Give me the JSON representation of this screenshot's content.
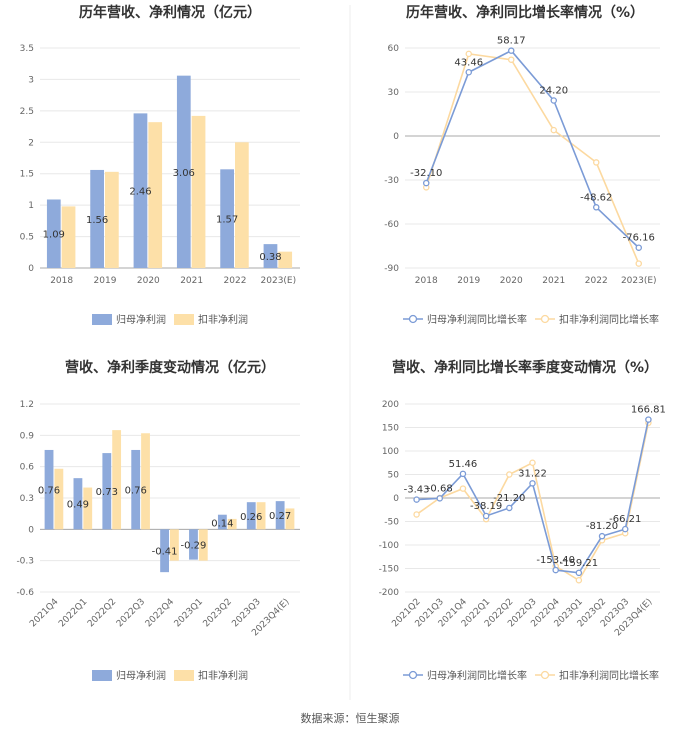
{
  "source": "数据来源：恒生聚源",
  "colors": {
    "series1": "#8eaadb",
    "series2": "#fde0a8",
    "grid": "#e8e8e8",
    "axis": "#aaaaaa"
  },
  "chart_data": [
    {
      "type": "bar",
      "title": "历年营收、净利情况（亿元）",
      "categories": [
        "2018",
        "2019",
        "2020",
        "2021",
        "2022",
        "2023(E)"
      ],
      "ylim": [
        0,
        3.5
      ],
      "yticks": [
        "0",
        "0.5",
        "1",
        "1.5",
        "2",
        "2.5",
        "3",
        "3.5"
      ],
      "series": [
        {
          "name": "归母净利润",
          "values": [
            1.09,
            1.56,
            2.46,
            3.06,
            1.57,
            0.38
          ],
          "labels": [
            "1.09",
            "1.56",
            "2.46",
            "3.06",
            "1.57",
            "0.38"
          ]
        },
        {
          "name": "扣非净利润",
          "values": [
            0.98,
            1.53,
            2.32,
            2.42,
            2.0,
            0.26
          ]
        }
      ],
      "grid": true,
      "legend": "bottom"
    },
    {
      "type": "line",
      "title": "历年营收、净利同比增长率情况（%）",
      "categories": [
        "2018",
        "2019",
        "2020",
        "2021",
        "2022",
        "2023(E)"
      ],
      "ylim": [
        -90,
        60
      ],
      "yticks": [
        "60",
        "30",
        "0",
        "-30",
        "-60",
        "-90"
      ],
      "series": [
        {
          "name": "归母净利润同比增长率",
          "values": [
            -32.1,
            43.46,
            58.17,
            24.2,
            -48.62,
            -76.16
          ],
          "labels": [
            "-32.10",
            "43.46",
            "58.17",
            "24.20",
            "-48.62",
            "-76.16"
          ]
        },
        {
          "name": "扣非净利润同比增长率",
          "values": [
            -35,
            56,
            52,
            4,
            -18,
            -87
          ]
        }
      ],
      "grid": true,
      "legend": "bottom"
    },
    {
      "type": "bar",
      "title": "营收、净利季度变动情况（亿元）",
      "categories": [
        "2021Q4",
        "2022Q1",
        "2022Q2",
        "2022Q3",
        "2022Q4",
        "2023Q1",
        "2023Q2",
        "2023Q3",
        "2023Q4(E)"
      ],
      "ylim": [
        -0.6,
        1.2
      ],
      "yticks": [
        "1.2",
        "0.9",
        "0.6",
        "0.3",
        "0",
        "-0.3",
        "-0.6"
      ],
      "series": [
        {
          "name": "归母净利润",
          "values": [
            0.76,
            0.49,
            0.73,
            0.76,
            -0.41,
            -0.29,
            0.14,
            0.26,
            0.27
          ],
          "labels": [
            "0.76",
            "0.49",
            "0.73",
            "0.76",
            "-0.41",
            "-0.29",
            "0.14",
            "0.26",
            "0.27"
          ]
        },
        {
          "name": "扣非净利润",
          "values": [
            0.58,
            0.4,
            0.95,
            0.92,
            -0.3,
            -0.3,
            0.1,
            0.26,
            0.2
          ]
        }
      ],
      "grid": true,
      "legend": "bottom"
    },
    {
      "type": "line",
      "title": "营收、净利同比增长率季度变动情况（%）",
      "categories": [
        "2021Q2",
        "2021Q3",
        "2021Q4",
        "2022Q1",
        "2022Q2",
        "2022Q3",
        "2022Q4",
        "2023Q1",
        "2023Q2",
        "2023Q3",
        "2023Q4(E)"
      ],
      "ylim": [
        -200,
        200
      ],
      "yticks": [
        "200",
        "150",
        "100",
        "50",
        "0",
        "-50",
        "-100",
        "-150",
        "-200"
      ],
      "series": [
        {
          "name": "归母净利润同比增长率",
          "values": [
            -3.43,
            -0.68,
            51.46,
            -38.19,
            -21.2,
            31.22,
            -153.4,
            -159.21,
            -81.2,
            -66.21,
            166.81
          ],
          "labels": [
            "-3.43",
            "-0.68",
            "51.46",
            "-38.19",
            "-21.20",
            "31.22",
            "-153.40",
            "-159.21",
            "-81.20",
            "-66.21",
            "166.81"
          ]
        },
        {
          "name": "扣非净利润同比增长率",
          "values": [
            -35,
            0,
            20,
            -45,
            50,
            75,
            -145,
            -175,
            -90,
            -75,
            160
          ]
        }
      ],
      "grid": true,
      "legend": "bottom"
    }
  ]
}
